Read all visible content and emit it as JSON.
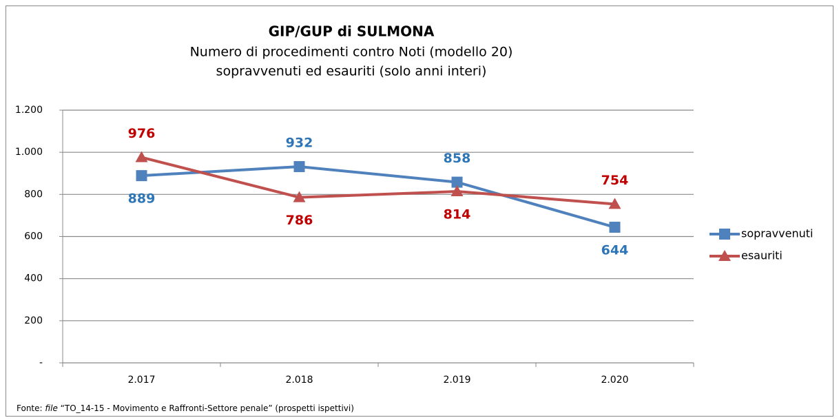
{
  "chart_data": {
    "type": "line",
    "title": "GIP/GUP di SULMONA",
    "subtitle": [
      "Numero di procedimenti contro Noti (modello 20)",
      "sopravvenuti ed esauriti (solo anni interi)"
    ],
    "categories": [
      "2.017",
      "2.018",
      "2.019",
      "2.020"
    ],
    "series": [
      {
        "name": "sopravvenuti",
        "color": "#4f81bd",
        "label_color": "#2e75b6",
        "marker": "square",
        "values": [
          889,
          932,
          858,
          644
        ]
      },
      {
        "name": "esauriti",
        "color": "#c0504d",
        "label_color": "#c00000",
        "marker": "triangle",
        "values": [
          976,
          786,
          814,
          754
        ]
      }
    ],
    "ylim": [
      0,
      1200
    ],
    "yticks": [
      {
        "value": 0,
        "label": "-"
      },
      200,
      400,
      600,
      800,
      {
        "value": 1000,
        "label": "1.000"
      },
      {
        "value": 1200,
        "label": "1.200"
      }
    ],
    "grid": true,
    "legend": "right",
    "source": [
      "Fonte: ",
      "file",
      " “TO_14-15 - Movimento e Raffronti-Settore penale” (prospetti ispettivi)"
    ]
  }
}
